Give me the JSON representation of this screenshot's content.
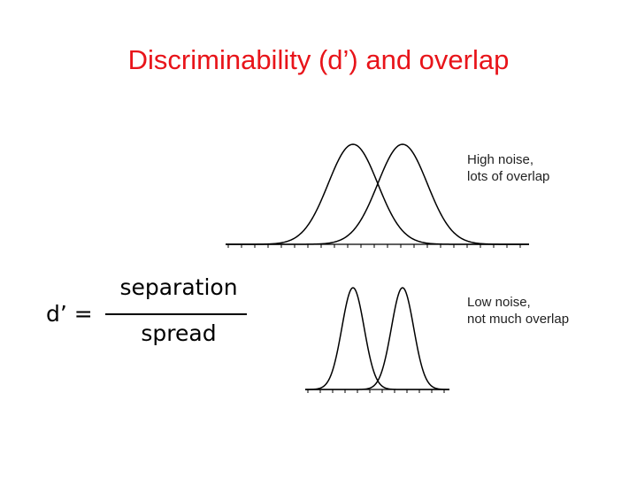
{
  "title": "Discriminability (d’) and overlap",
  "panels": [
    {
      "label_lines": [
        "High noise,",
        "lots of overlap"
      ],
      "mean_a": -1,
      "mean_b": 1,
      "sd": 1.0
    },
    {
      "label_lines": [
        "Low noise,",
        "not much overlap"
      ],
      "mean_a": -1,
      "mean_b": 1,
      "sd": 0.45
    }
  ],
  "formula": {
    "lhs": "d’ =",
    "numerator": "separation",
    "denominator": "spread"
  }
}
